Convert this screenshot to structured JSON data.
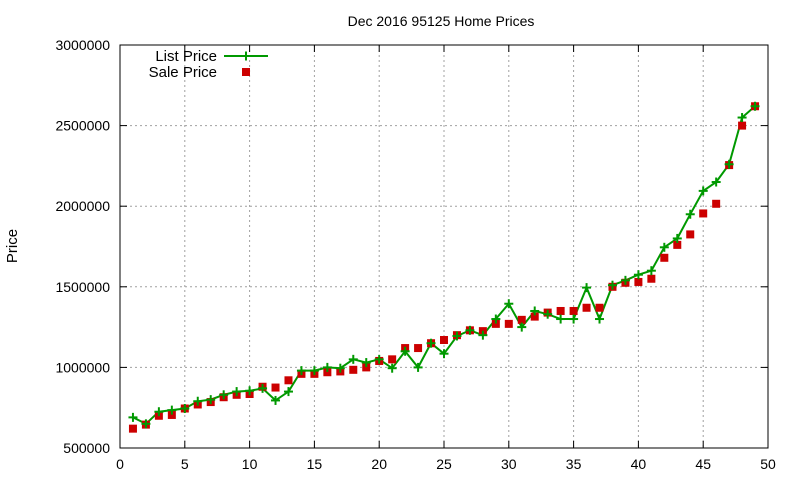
{
  "chart_data": {
    "type": "line",
    "title": "Dec 2016 95125 Home Prices",
    "xlabel": "",
    "ylabel": "Price",
    "xlim": [
      0,
      50
    ],
    "ylim": [
      500000,
      3000000
    ],
    "x_ticks": [
      0,
      5,
      10,
      15,
      20,
      25,
      30,
      35,
      40,
      45,
      50
    ],
    "y_ticks": [
      500000,
      1000000,
      1500000,
      2000000,
      2500000,
      3000000
    ],
    "grid": true,
    "legend_position": "top-left",
    "series": [
      {
        "name": "List Price",
        "style": "line-points",
        "color": "#009900",
        "x": [
          1,
          2,
          3,
          4,
          5,
          6,
          7,
          8,
          9,
          10,
          11,
          12,
          13,
          14,
          15,
          16,
          17,
          18,
          19,
          20,
          21,
          22,
          23,
          24,
          25,
          26,
          27,
          28,
          29,
          30,
          31,
          32,
          33,
          34,
          35,
          36,
          37,
          38,
          39,
          40,
          41,
          42,
          43,
          44,
          45,
          46,
          47,
          48,
          49
        ],
        "values": [
          690000,
          650000,
          725000,
          735000,
          745000,
          790000,
          800000,
          830000,
          850000,
          855000,
          870000,
          795000,
          850000,
          980000,
          980000,
          1000000,
          995000,
          1050000,
          1030000,
          1050000,
          995000,
          1100000,
          1000000,
          1150000,
          1085000,
          1195000,
          1230000,
          1200000,
          1300000,
          1395000,
          1250000,
          1350000,
          1330000,
          1300000,
          1300000,
          1495000,
          1300000,
          1510000,
          1540000,
          1575000,
          1600000,
          1745000,
          1800000,
          1950000,
          2095000,
          2150000,
          2260000,
          2550000,
          2620000
        ]
      },
      {
        "name": "Sale Price",
        "style": "points",
        "color": "#cc0000",
        "x": [
          1,
          2,
          3,
          4,
          5,
          6,
          7,
          8,
          9,
          10,
          11,
          12,
          13,
          14,
          15,
          16,
          17,
          18,
          19,
          20,
          21,
          22,
          23,
          24,
          25,
          26,
          27,
          28,
          29,
          30,
          31,
          32,
          33,
          34,
          35,
          36,
          37,
          38,
          39,
          40,
          41,
          42,
          43,
          44,
          45,
          46,
          47,
          48,
          49
        ],
        "values": [
          620000,
          645000,
          700000,
          705000,
          745000,
          770000,
          785000,
          815000,
          830000,
          835000,
          880000,
          875000,
          920000,
          960000,
          960000,
          970000,
          975000,
          985000,
          1000000,
          1040000,
          1050000,
          1120000,
          1120000,
          1150000,
          1170000,
          1200000,
          1230000,
          1225000,
          1270000,
          1270000,
          1295000,
          1315000,
          1340000,
          1350000,
          1350000,
          1370000,
          1370000,
          1500000,
          1525000,
          1530000,
          1550000,
          1680000,
          1760000,
          1825000,
          1955000,
          2015000,
          2255000,
          2500000,
          2620000
        ]
      }
    ]
  }
}
